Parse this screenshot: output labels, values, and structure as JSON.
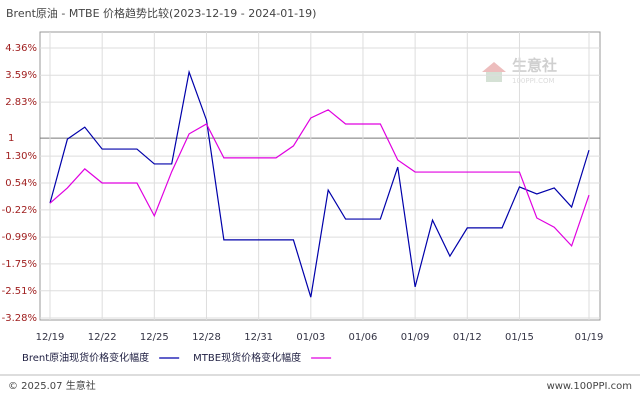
{
  "chart_data": {
    "type": "line",
    "title": "Brent原油 - MTBE 价格趋势比较(2023-12-19 - 2024-01-19)",
    "categories": [
      "12/19",
      null,
      null,
      "12/22",
      null,
      null,
      "12/25",
      null,
      null,
      "12/28",
      null,
      null,
      "12/31",
      null,
      null,
      "01/03",
      null,
      null,
      "01/06",
      null,
      null,
      "01/09",
      null,
      null,
      "01/12",
      null,
      null,
      "01/15",
      null,
      null,
      null,
      "01/19"
    ],
    "series": [
      {
        "name": "Brent原油现货价格变化幅度",
        "color": "#0000aa",
        "values": [
          -0.03,
          1.78,
          2.12,
          1.5,
          1.5,
          1.5,
          1.08,
          1.08,
          3.68,
          2.32,
          -1.07,
          -1.07,
          -1.07,
          -1.07,
          -1.07,
          -2.69,
          0.34,
          -0.48,
          -0.48,
          -0.48,
          0.99,
          -2.4,
          -0.51,
          -1.53,
          -0.73,
          -0.73,
          -0.73,
          0.43,
          0.23,
          0.4,
          -0.14,
          1.47
        ]
      },
      {
        "name": "MTBE现货价格变化幅度",
        "color": "#e000e0",
        "values": [
          -0.03,
          0.4,
          0.94,
          0.54,
          0.54,
          0.54,
          -0.39,
          0.86,
          1.93,
          2.21,
          1.25,
          1.25,
          1.25,
          1.25,
          1.59,
          2.38,
          2.61,
          2.21,
          2.21,
          2.21,
          1.19,
          0.85,
          0.85,
          0.85,
          0.85,
          0.85,
          0.85,
          0.85,
          -0.45,
          -0.71,
          -1.24,
          0.2
        ]
      }
    ],
    "ylim": [
      -3.28,
      4.36
    ],
    "yticks": [
      {
        "value": 4.36,
        "label": "4.36%"
      },
      {
        "value": 3.59,
        "label": "3.59%"
      },
      {
        "value": 2.83,
        "label": "2.83%"
      },
      {
        "value": 1.3,
        "label": "1.30%"
      },
      {
        "value": 0.54,
        "label": "0.54%"
      },
      {
        "value": -0.22,
        "label": "-0.22%"
      },
      {
        "value": -0.99,
        "label": "-0.99%"
      },
      {
        "value": -1.75,
        "label": "-1.75%"
      },
      {
        "value": -2.51,
        "label": "-2.51%"
      },
      {
        "value": -3.28,
        "label": "-3.28%"
      }
    ],
    "reference": {
      "value": 1.81,
      "label": "1"
    },
    "grid": true
  },
  "watermark": {
    "text": "生意社",
    "sub": "100PPI.COM"
  },
  "footer": {
    "left": "© 2025.07 生意社",
    "right": "www.100PPI.com"
  }
}
